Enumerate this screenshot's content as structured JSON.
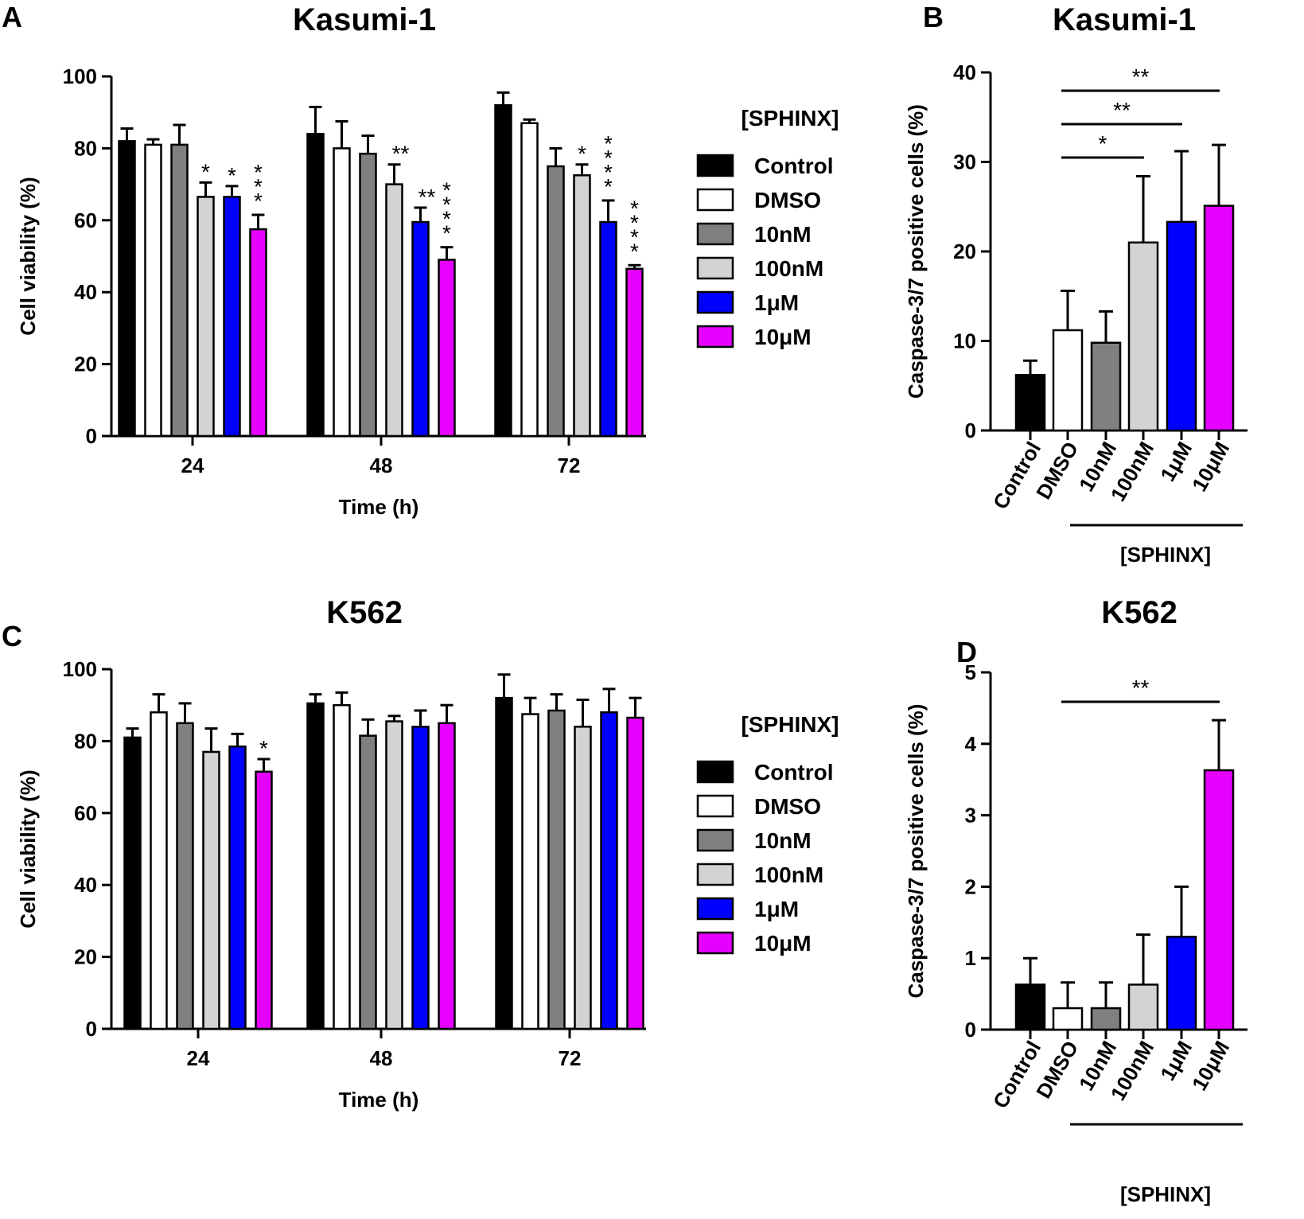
{
  "figure": {
    "panels": [
      {
        "letter": "A"
      },
      {
        "letter": "B"
      },
      {
        "letter": "C"
      },
      {
        "letter": "D"
      }
    ]
  },
  "chart_data": [
    {
      "id": "A",
      "type": "bar",
      "title": "Kasumi-1",
      "xlabel": "Time (h)",
      "ylabel": "Cell viability (%)",
      "ylim": [
        0,
        100
      ],
      "yticks": [
        0,
        20,
        40,
        60,
        80,
        100
      ],
      "categories": [
        "24",
        "48",
        "72"
      ],
      "legend_title": "[SPHINX]",
      "series": [
        {
          "name": "Control",
          "color": "#000000",
          "values": [
            82,
            84,
            92
          ],
          "errors": [
            3.5,
            7.5,
            3.5
          ],
          "stars": [
            "",
            "",
            ""
          ]
        },
        {
          "name": "DMSO",
          "color": "#ffffff",
          "values": [
            81,
            80,
            87
          ],
          "errors": [
            1.5,
            7.5,
            1
          ],
          "stars": [
            "",
            "",
            ""
          ]
        },
        {
          "name": "10nM",
          "color": "#808080",
          "values": [
            81,
            78.5,
            75
          ],
          "errors": [
            5.5,
            5,
            5
          ],
          "stars": [
            "",
            "",
            ""
          ]
        },
        {
          "name": "100nM",
          "color": "#d3d3d3",
          "values": [
            66.5,
            70,
            72.5
          ],
          "errors": [
            4,
            5.5,
            3
          ],
          "stars": [
            "*",
            "**",
            "*"
          ]
        },
        {
          "name": "1μM",
          "color": "#0000ff",
          "values": [
            66.5,
            59.5,
            59.5
          ],
          "errors": [
            3,
            4,
            6
          ],
          "stars": [
            "*",
            "**",
            "****"
          ]
        },
        {
          "name": "10μM",
          "color": "#e600ff",
          "values": [
            57.5,
            49,
            46.5
          ],
          "errors": [
            4,
            3.5,
            1
          ],
          "stars": [
            "***",
            "****",
            "****"
          ]
        }
      ]
    },
    {
      "id": "B",
      "type": "bar",
      "title": "Kasumi-1",
      "xlabel": "[SPHINX]",
      "ylabel": "Caspase-3/7 positive cells (%)",
      "ylim": [
        0,
        40
      ],
      "yticks": [
        0,
        10,
        20,
        30,
        40
      ],
      "categories": [
        "Control",
        "DMSO",
        "10nM",
        "100nM",
        "1μM",
        "10μM"
      ],
      "colors": [
        "#000000",
        "#ffffff",
        "#808080",
        "#d3d3d3",
        "#0000ff",
        "#e600ff"
      ],
      "values": [
        6.2,
        11.2,
        9.8,
        21,
        23.3,
        25.1
      ],
      "errors": [
        1.6,
        4.4,
        3.5,
        7.4,
        7.9,
        6.8
      ],
      "comparisons": [
        {
          "from": 1,
          "to": 3,
          "label": "*"
        },
        {
          "from": 1,
          "to": 4,
          "label": "**"
        },
        {
          "from": 1,
          "to": 5,
          "label": "**"
        }
      ]
    },
    {
      "id": "C",
      "type": "bar",
      "title": "K562",
      "xlabel": "Time (h)",
      "ylabel": "Cell viability (%)",
      "ylim": [
        0,
        100
      ],
      "yticks": [
        0,
        20,
        40,
        60,
        80,
        100
      ],
      "categories": [
        "24",
        "48",
        "72"
      ],
      "legend_title": "[SPHINX]",
      "series": [
        {
          "name": "Control",
          "color": "#000000",
          "values": [
            81,
            90.5,
            92
          ],
          "errors": [
            2.5,
            2.5,
            6.5
          ],
          "stars": [
            "",
            "",
            ""
          ]
        },
        {
          "name": "DMSO",
          "color": "#ffffff",
          "values": [
            88,
            90,
            87.5
          ],
          "errors": [
            5,
            3.5,
            4.5
          ],
          "stars": [
            "",
            "",
            ""
          ]
        },
        {
          "name": "10nM",
          "color": "#808080",
          "values": [
            85,
            81.5,
            88.5
          ],
          "errors": [
            5.5,
            4.5,
            4.5
          ],
          "stars": [
            "",
            "",
            ""
          ]
        },
        {
          "name": "100nM",
          "color": "#d3d3d3",
          "values": [
            77,
            85.5,
            84
          ],
          "errors": [
            6.5,
            1.5,
            7.5
          ],
          "stars": [
            "",
            "",
            ""
          ]
        },
        {
          "name": "1μM",
          "color": "#0000ff",
          "values": [
            78.5,
            84,
            88
          ],
          "errors": [
            3.5,
            4.5,
            6.5
          ],
          "stars": [
            "",
            "",
            ""
          ]
        },
        {
          "name": "10μM",
          "color": "#e600ff",
          "values": [
            71.5,
            85,
            86.5
          ],
          "errors": [
            3.5,
            5,
            5.5
          ],
          "stars": [
            "*",
            "",
            ""
          ]
        }
      ]
    },
    {
      "id": "D",
      "type": "bar",
      "title": "K562",
      "xlabel": "[SPHINX]",
      "ylabel": "Caspase-3/7 positive cells (%)",
      "ylim": [
        0,
        5
      ],
      "yticks": [
        0,
        1,
        2,
        3,
        4,
        5
      ],
      "categories": [
        "Control",
        "DMSO",
        "10nM",
        "100nM",
        "1μM",
        "10μM"
      ],
      "colors": [
        "#000000",
        "#ffffff",
        "#808080",
        "#d3d3d3",
        "#0000ff",
        "#e600ff"
      ],
      "values": [
        0.63,
        0.3,
        0.3,
        0.63,
        1.3,
        3.63
      ],
      "errors": [
        0.37,
        0.36,
        0.36,
        0.7,
        0.7,
        0.7
      ],
      "comparisons": [
        {
          "from": 1,
          "to": 5,
          "label": "**"
        }
      ]
    }
  ]
}
